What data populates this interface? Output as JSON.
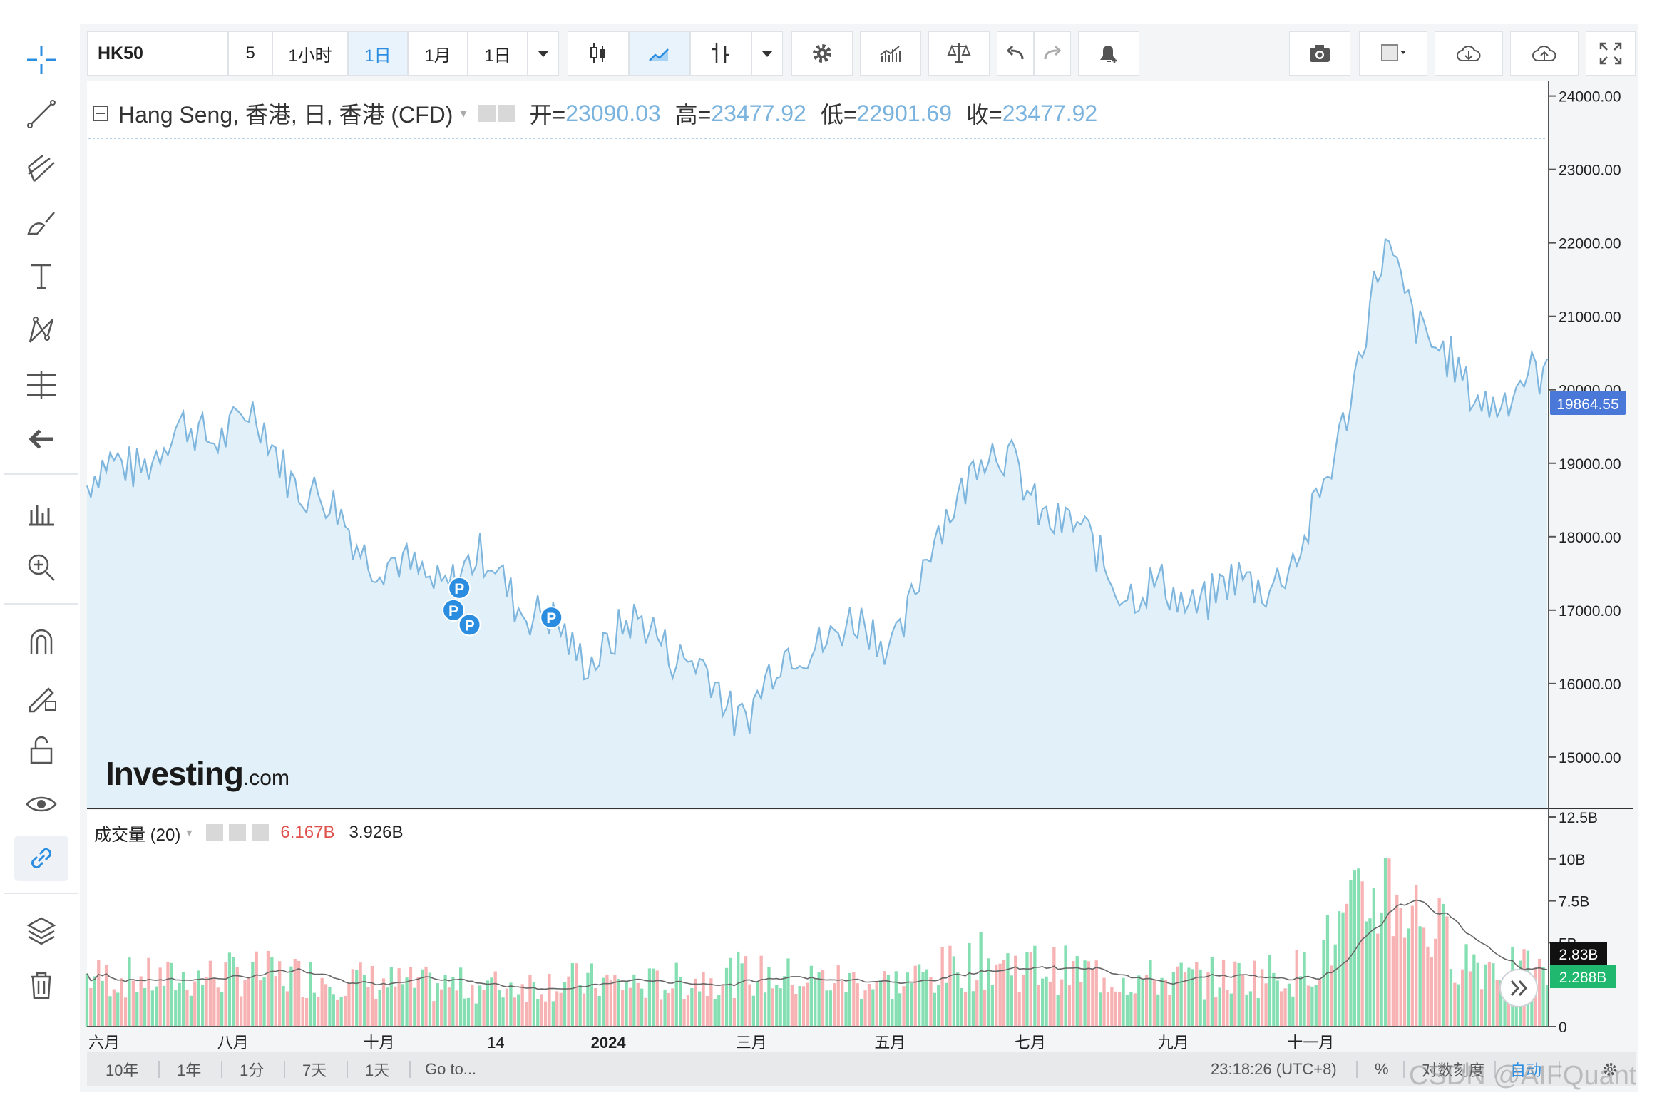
{
  "toolbar": {
    "symbol": "HK50",
    "intervals": [
      "5",
      "1小时",
      "1日",
      "1月",
      "1日"
    ],
    "active_interval": "1日"
  },
  "legend": {
    "title": "Hang Seng, 香港, 日, 香港 (CFD)",
    "open_label": "开=",
    "open": "23090.03",
    "high_label": "高=",
    "high": "23477.92",
    "low_label": "低=",
    "low": "22901.69",
    "close_label": "收=",
    "close": "23477.92"
  },
  "volume_legend": {
    "title": "成交量 (20)",
    "value1": "6.167B",
    "value2": "3.926B"
  },
  "brand": {
    "name": "Investing",
    "suffix": ".com"
  },
  "price_axis": {
    "ticks": [
      "24000.00",
      "23000.00",
      "22000.00",
      "21000.00",
      "20000.00",
      "19000.00",
      "18000.00",
      "17000.00",
      "16000.00",
      "15000.00"
    ],
    "current_price": "19864.55"
  },
  "volume_axis": {
    "ticks": [
      "12.5B",
      "10B",
      "7.5B",
      "5B",
      "0"
    ],
    "last_volume": "2.83B",
    "ma_value": "2.288B"
  },
  "time_axis": [
    "六月",
    "八月",
    "十月",
    "14",
    "2024",
    "三月",
    "五月",
    "七月",
    "九月",
    "十一月"
  ],
  "bottom": {
    "ranges": [
      "10年",
      "1年",
      "1分",
      "7天",
      "1天"
    ],
    "goto": "Go to...",
    "clock": "23:18:26 (UTC+8)",
    "percent": "%",
    "log": "对数刻度",
    "auto": "自动"
  },
  "markers": [
    "P",
    "P",
    "P",
    "P"
  ],
  "watermark": "CSDN @AIFQuant",
  "colors": {
    "line": "#7fb6de",
    "area": "#e2f1f9",
    "vol_up": "#86dfb3",
    "vol_down": "#f7b3b3",
    "price_badge": "#4a78d8",
    "ma_badge": "#1fb86e"
  },
  "chart_data": {
    "type": "area",
    "x": [
      "2023-06",
      "2023-07",
      "2023-08",
      "2023-09",
      "2023-10",
      "2023-11",
      "2023-12",
      "2024-01",
      "2024-02",
      "2024-03",
      "2024-04",
      "2024-05",
      "2024-06",
      "2024-07",
      "2024-08",
      "2024-09",
      "2024-10",
      "2024-11",
      "2024-12"
    ],
    "series": [
      {
        "values": [
          18700,
          19300,
          19600,
          18300,
          17400,
          17600,
          16400,
          16800,
          15600,
          16700,
          16700,
          19300,
          18200,
          17200,
          17200,
          17700,
          21800,
          19900,
          20100
        ]
      }
    ],
    "ylim": [
      14300,
      24200
    ],
    "volume": {
      "ylim": [
        0,
        12.5
      ],
      "ma_period": 20,
      "series": [
        {
          "values": [
            3.0,
            2.8,
            3.2,
            2.9,
            2.5,
            2.4,
            2.7,
            2.5,
            3.1,
            2.8,
            2.6,
            3.9,
            3.4,
            2.8,
            2.9,
            3.3,
            8.5,
            4.0,
            2.9
          ]
        }
      ]
    }
  }
}
